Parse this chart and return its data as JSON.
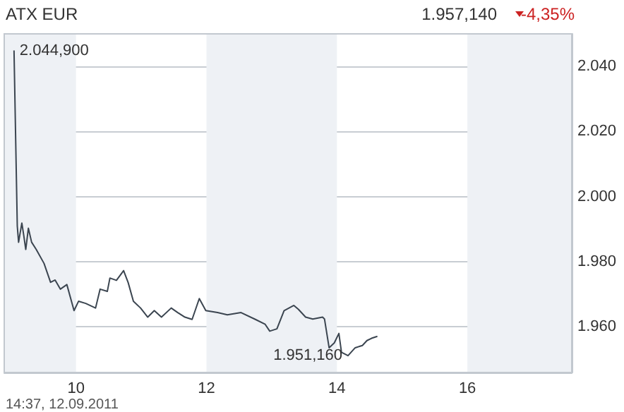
{
  "chart_data": {
    "type": "line",
    "title": "ATX EUR",
    "annotations": [
      "1.957,140",
      "-4,35%",
      "14:37, 12.09.2011",
      {
        "text": "2.044,900",
        "x": 9.05,
        "y": 2044.9
      },
      {
        "text": "1.951,160",
        "x": 14.17,
        "y": 1951.16
      }
    ],
    "x": [
      9.05,
      9.1,
      9.12,
      9.17,
      9.2,
      9.23,
      9.27,
      9.32,
      9.39,
      9.51,
      9.61,
      9.68,
      9.76,
      9.86,
      9.97,
      10.04,
      10.15,
      10.3,
      10.37,
      10.48,
      10.52,
      10.62,
      10.73,
      10.8,
      10.88,
      10.99,
      11.1,
      11.2,
      11.31,
      11.46,
      11.56,
      11.67,
      11.78,
      11.89,
      11.99,
      12.17,
      12.32,
      12.53,
      12.75,
      12.9,
      12.97,
      13.08,
      13.19,
      13.34,
      13.41,
      13.52,
      13.63,
      13.78,
      13.81,
      13.88,
      13.96,
      14.03,
      14.07,
      14.17,
      14.28,
      14.39,
      14.46,
      14.53,
      14.62
    ],
    "series": [
      {
        "color": "#3b4550",
        "values": [
          2044.9,
          1991,
          1986,
          1991.9,
          1988,
          1983.8,
          1990.3,
          1986,
          1983.8,
          1979.5,
          1973.7,
          1974.4,
          1971.6,
          1973,
          1965,
          1967.9,
          1967.2,
          1965.8,
          1971.6,
          1970.9,
          1975,
          1974.3,
          1977.3,
          1973.6,
          1967.9,
          1965.8,
          1963,
          1965,
          1963,
          1965.8,
          1964.4,
          1963,
          1962.3,
          1968.7,
          1965,
          1964.4,
          1963.7,
          1964.4,
          1962.3,
          1960.8,
          1958.7,
          1959.4,
          1965,
          1966.6,
          1965.4,
          1963,
          1962.4,
          1963,
          1962.4,
          1953.6,
          1955.1,
          1958,
          1952.2,
          1951.16,
          1953.6,
          1954.3,
          1955.8,
          1956.5,
          1957.1
        ]
      }
    ],
    "xlim": [
      8.9,
      17.6
    ],
    "xticks": [
      10,
      12,
      14,
      16
    ],
    "ylim": [
      1946,
      2050
    ],
    "yticks": [
      {
        "value": 1960,
        "label": "1.960"
      },
      {
        "value": 1980,
        "label": "1.980"
      },
      {
        "value": 2000,
        "label": "2.000"
      },
      {
        "value": 2020,
        "label": "2.020"
      },
      {
        "value": 2040,
        "label": "2.040"
      }
    ],
    "bands": [
      {
        "axis": "x",
        "from": 8.9,
        "to": 10,
        "color": "#eef1f5"
      },
      {
        "axis": "x",
        "from": 12,
        "to": 14,
        "color": "#eef1f5"
      },
      {
        "axis": "x",
        "from": 16,
        "to": 17.6,
        "color": "#eef1f5"
      }
    ],
    "grid": "y",
    "marker": "none",
    "line_style": "solid"
  }
}
